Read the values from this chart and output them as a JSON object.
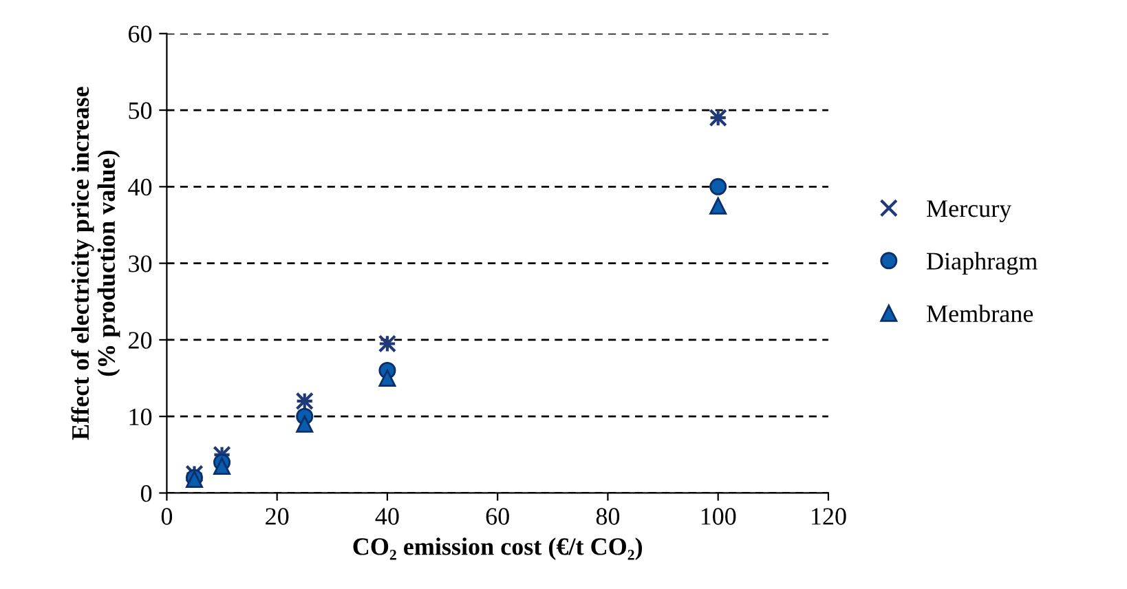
{
  "chart_data": {
    "type": "scatter",
    "xlabel": "CO₂ emission cost (€/t CO₂)",
    "ylabel": "Effect of electricity price increase\n(% production value)",
    "x": [
      5,
      10,
      25,
      40,
      100
    ],
    "series": [
      {
        "name": "Mercury",
        "color": "#1f3a78",
        "marker": "cross",
        "values": [
          2.5,
          5,
          12,
          19.5,
          49
        ]
      },
      {
        "name": "Diaphragm",
        "color": "#0a5cad",
        "marker": "circle",
        "values": [
          2,
          4,
          10,
          16,
          40
        ]
      },
      {
        "name": "Membrane",
        "color": "#0a5cad",
        "marker": "triangle",
        "values": [
          1.8,
          3.5,
          9,
          15,
          37.5
        ]
      }
    ],
    "xlim": [
      0,
      120
    ],
    "xticks": [
      0,
      20,
      40,
      60,
      80,
      100,
      120
    ],
    "ylim": [
      0,
      60
    ],
    "yticks": [
      0,
      10,
      20,
      30,
      40,
      50,
      60
    ],
    "grid": "y",
    "legend": "right"
  }
}
